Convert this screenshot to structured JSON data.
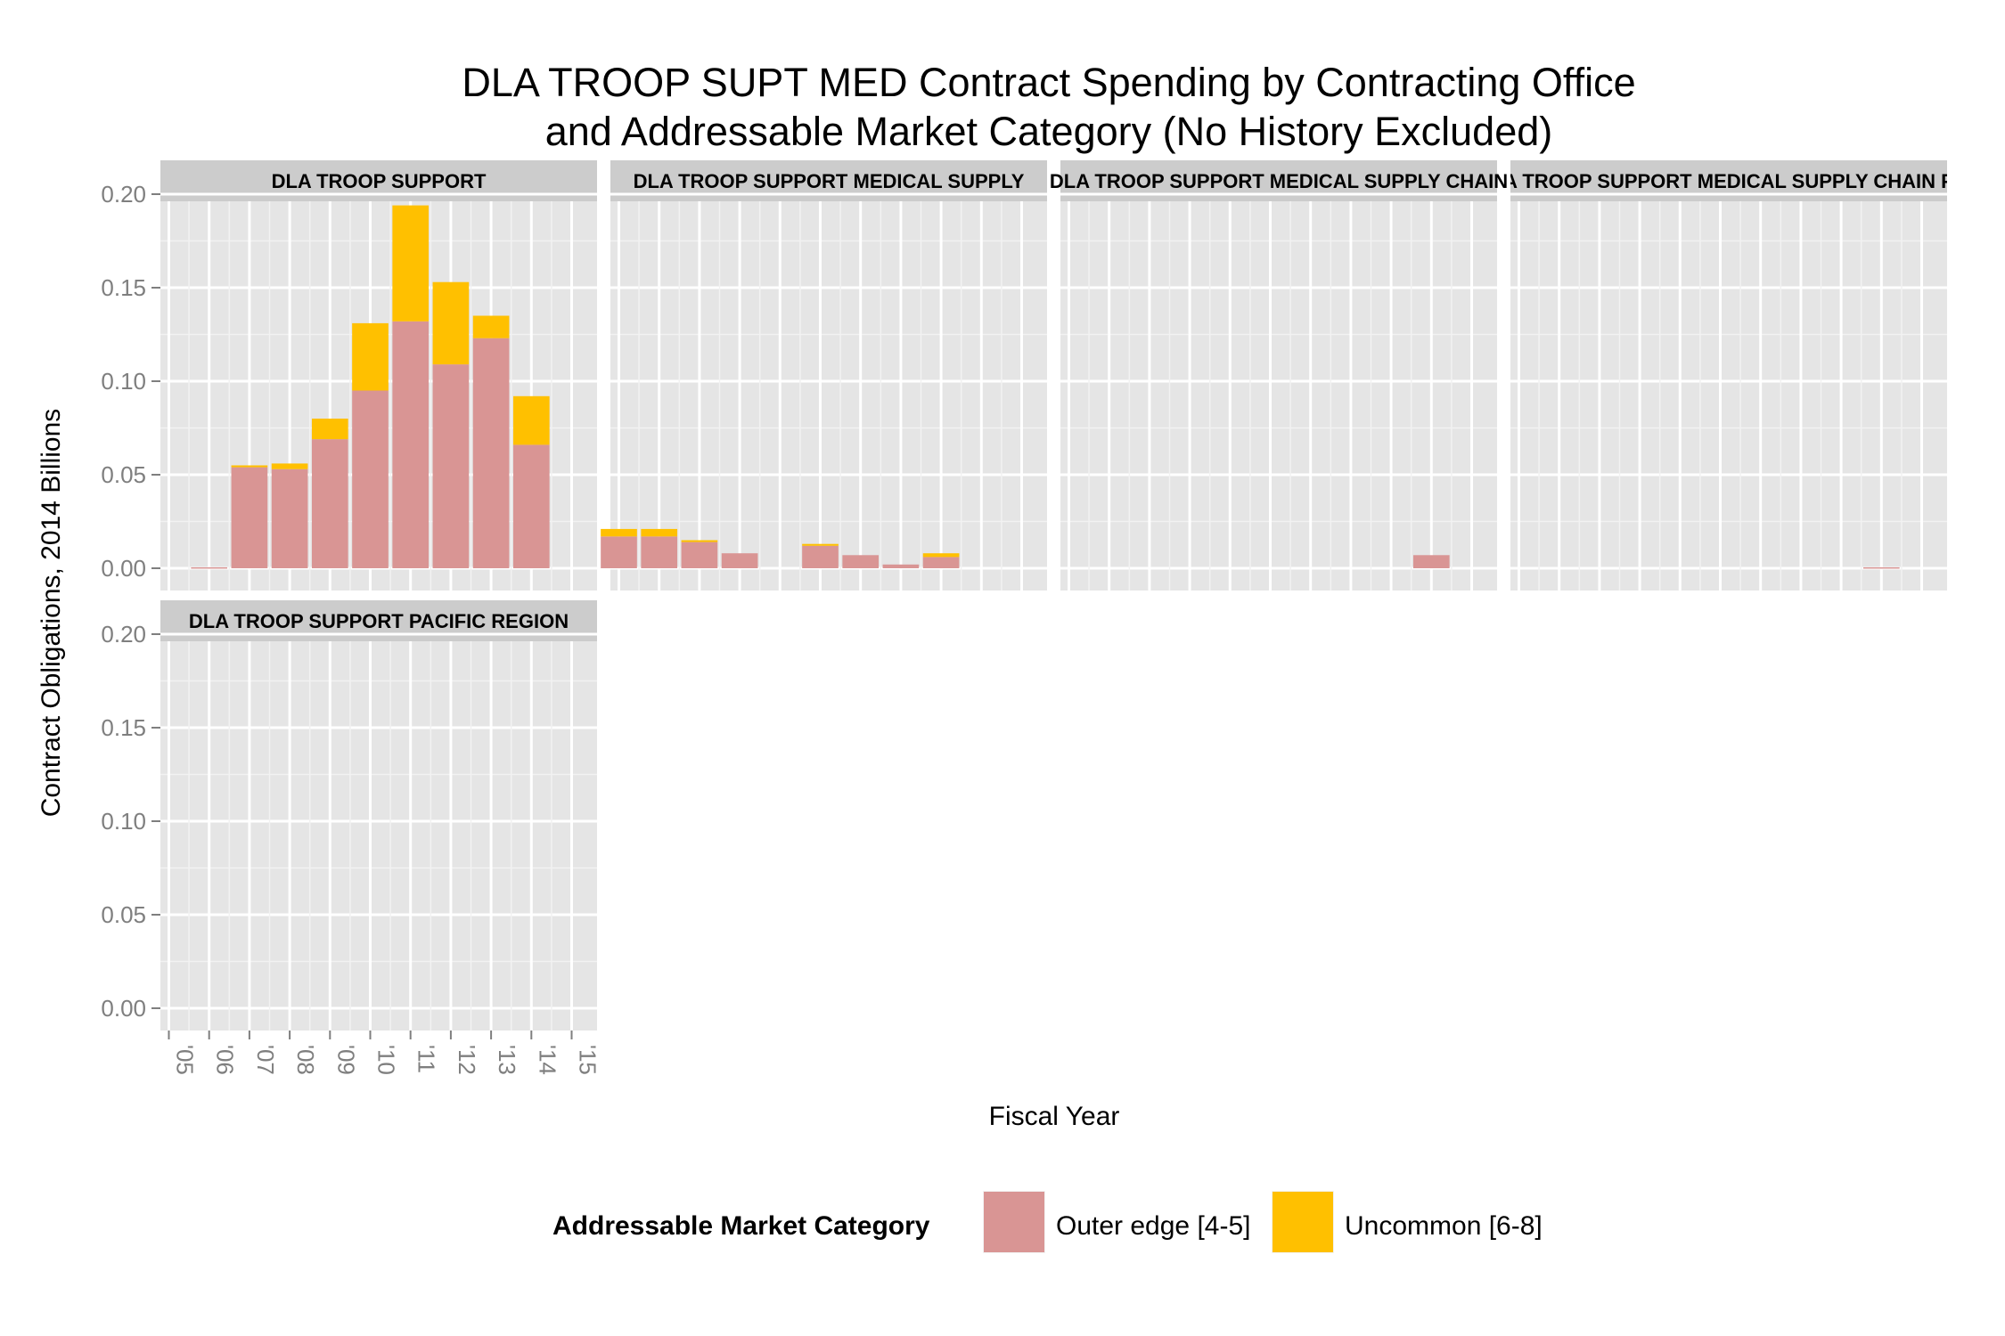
{
  "chart_data": {
    "type": "bar",
    "stacked": true,
    "faceted": true,
    "title": "DLA TROOP SUPT MED Contract Spending by Contracting Office",
    "subtitle": "and Addressable Market Category (No History Excluded)",
    "xlabel": "Fiscal Year",
    "ylabel": "Contract Obligations, 2014 Billions",
    "ylim": [
      0,
      0.2
    ],
    "yticks": [
      "0.00",
      "0.05",
      "0.10",
      "0.15",
      "0.20"
    ],
    "x": [
      "'05",
      "'06",
      "'07",
      "'08",
      "'09",
      "'10",
      "'11",
      "'12",
      "'13",
      "'14",
      "'15"
    ],
    "legend": {
      "title": "Addressable Market Category",
      "position": "bottom",
      "entries": [
        {
          "label": "Outer edge [4-5]",
          "color": "#d99594"
        },
        {
          "label": "Uncommon [6-8]",
          "color": "#ffc000"
        }
      ]
    },
    "panels": [
      {
        "label": "DLA TROOP SUPPORT",
        "series": [
          {
            "name": "Outer edge [4-5]",
            "values": [
              0,
              0.0005,
              0.054,
              0.053,
              0.069,
              0.095,
              0.132,
              0.109,
              0.123,
              0.066,
              0
            ]
          },
          {
            "name": "Uncommon [6-8]",
            "values": [
              0,
              0,
              0.001,
              0.003,
              0.011,
              0.036,
              0.062,
              0.044,
              0.012,
              0.026,
              0
            ]
          }
        ]
      },
      {
        "label": "DLA TROOP SUPPORT MEDICAL SUPPLY",
        "series": [
          {
            "name": "Outer edge [4-5]",
            "values": [
              0.017,
              0.017,
              0.014,
              0.008,
              0,
              0.012,
              0.007,
              0.002,
              0.006,
              0,
              0
            ]
          },
          {
            "name": "Uncommon [6-8]",
            "values": [
              0.004,
              0.004,
              0.001,
              0,
              0,
              0.001,
              0,
              0,
              0.002,
              0,
              0
            ]
          }
        ]
      },
      {
        "label": "DLA TROOP SUPPORT MEDICAL SUPPLY CHAIN",
        "series": [
          {
            "name": "Outer edge [4-5]",
            "values": [
              0,
              0,
              0,
              0,
              0,
              0,
              0,
              0,
              0,
              0.007,
              0
            ]
          },
          {
            "name": "Uncommon [6-8]",
            "values": [
              0,
              0,
              0,
              0,
              0,
              0,
              0,
              0,
              0,
              0,
              0
            ]
          }
        ]
      },
      {
        "label": "DLA TROOP SUPPORT MEDICAL SUPPLY CHAIN FSC",
        "series": [
          {
            "name": "Outer edge [4-5]",
            "values": [
              0,
              0,
              0,
              0,
              0,
              0,
              0,
              0,
              0,
              0.0005,
              0
            ]
          },
          {
            "name": "Uncommon [6-8]",
            "values": [
              0,
              0,
              0,
              0,
              0,
              0,
              0,
              0,
              0,
              0,
              0
            ]
          }
        ]
      },
      {
        "label": "DLA TROOP SUPPORT PACIFIC REGION",
        "series": [
          {
            "name": "Outer edge [4-5]",
            "values": [
              0,
              0,
              0,
              0,
              0,
              0,
              0,
              0,
              0,
              0,
              0
            ]
          },
          {
            "name": "Uncommon [6-8]",
            "values": [
              0,
              0,
              0,
              0,
              0,
              0,
              0,
              0,
              0,
              0,
              0
            ]
          }
        ]
      }
    ]
  }
}
